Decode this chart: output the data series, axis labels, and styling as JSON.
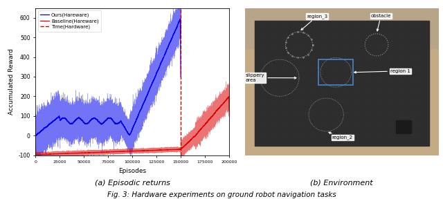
{
  "title": "Fig. 3: Hardware experiments on ground robot navigation tasks",
  "subplot_a_label": "(a) Episodic returns",
  "subplot_b_label": "(b) Environment",
  "xlabel": "Episodes",
  "ylabel": "Accumulated Reward",
  "legend_ours": "Ours(Hareware)",
  "legend_baseline": "Baseline(Hareware)",
  "legend_time": "Time(Hardware)",
  "blue_color": "#0000ee",
  "red_color": "#dd0000",
  "dashed_color": "#cc0000",
  "xmin": 0,
  "xmax": 200000,
  "ymin": -100,
  "ymax": 650,
  "vline_x": 150000,
  "xticks": [
    0,
    25000,
    50000,
    75000,
    100000,
    125000,
    150000,
    175000,
    200000
  ],
  "xtick_labels": [
    "0",
    "25000",
    "50000",
    "75000",
    "100000",
    "125000",
    "150000",
    "175000",
    "200000"
  ],
  "yticks": [
    -100,
    0,
    100,
    200,
    300,
    400,
    500,
    600
  ],
  "seed": 7
}
